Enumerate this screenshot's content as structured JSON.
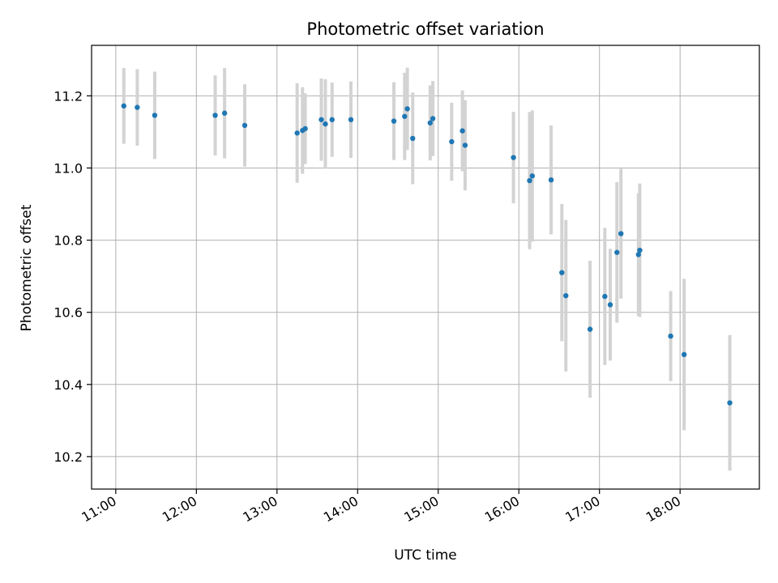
{
  "chart_data": {
    "type": "scatter",
    "title": "Photometric offset variation",
    "xlabel": "UTC time",
    "ylabel": "Photometric offset",
    "x_unit": "UTC hours",
    "xlim": [
      "10:42",
      "18:59"
    ],
    "ylim": [
      10.11,
      11.34
    ],
    "x_ticks": [
      {
        "value": "11:00",
        "label": "11:00"
      },
      {
        "value": "12:00",
        "label": "12:00"
      },
      {
        "value": "13:00",
        "label": "13:00"
      },
      {
        "value": "14:00",
        "label": "14:00"
      },
      {
        "value": "15:00",
        "label": "15:00"
      },
      {
        "value": "16:00",
        "label": "16:00"
      },
      {
        "value": "17:00",
        "label": "17:00"
      },
      {
        "value": "18:00",
        "label": "18:00"
      }
    ],
    "y_ticks": [
      {
        "value": 10.2,
        "label": "10.2"
      },
      {
        "value": 10.4,
        "label": "10.4"
      },
      {
        "value": 10.6,
        "label": "10.6"
      },
      {
        "value": 10.8,
        "label": "10.8"
      },
      {
        "value": 11.0,
        "label": "11.0"
      },
      {
        "value": 11.2,
        "label": "11.2"
      }
    ],
    "grid": true,
    "marker_color": "#1f77b4",
    "errorbar_color": "#d3d3d3",
    "points": [
      {
        "x": "11:06",
        "y": 11.172,
        "err": 0.105
      },
      {
        "x": "11:16",
        "y": 11.168,
        "err": 0.106
      },
      {
        "x": "11:29",
        "y": 11.146,
        "err": 0.121
      },
      {
        "x": "12:14",
        "y": 11.146,
        "err": 0.111
      },
      {
        "x": "12:21",
        "y": 11.152,
        "err": 0.125
      },
      {
        "x": "12:36",
        "y": 11.118,
        "err": 0.114
      },
      {
        "x": "13:15",
        "y": 11.097,
        "err": 0.138
      },
      {
        "x": "13:19",
        "y": 11.104,
        "err": 0.12
      },
      {
        "x": "13:21",
        "y": 11.109,
        "err": 0.098
      },
      {
        "x": "13:33",
        "y": 11.134,
        "err": 0.114
      },
      {
        "x": "13:36",
        "y": 11.122,
        "err": 0.124
      },
      {
        "x": "13:41",
        "y": 11.134,
        "err": 0.103
      },
      {
        "x": "13:55",
        "y": 11.134,
        "err": 0.106
      },
      {
        "x": "14:27",
        "y": 11.13,
        "err": 0.108
      },
      {
        "x": "14:35",
        "y": 11.143,
        "err": 0.121
      },
      {
        "x": "14:37",
        "y": 11.164,
        "err": 0.114
      },
      {
        "x": "14:41",
        "y": 11.082,
        "err": 0.127
      },
      {
        "x": "14:54",
        "y": 11.125,
        "err": 0.104
      },
      {
        "x": "14:56",
        "y": 11.137,
        "err": 0.104
      },
      {
        "x": "15:10",
        "y": 11.073,
        "err": 0.108
      },
      {
        "x": "15:18",
        "y": 11.103,
        "err": 0.112
      },
      {
        "x": "15:20",
        "y": 11.063,
        "err": 0.125
      },
      {
        "x": "15:56",
        "y": 11.029,
        "err": 0.127
      },
      {
        "x": "16:08",
        "y": 10.965,
        "err": 0.19
      },
      {
        "x": "16:10",
        "y": 10.978,
        "err": 0.182
      },
      {
        "x": "16:24",
        "y": 10.967,
        "err": 0.151
      },
      {
        "x": "16:32",
        "y": 10.71,
        "err": 0.19
      },
      {
        "x": "16:35",
        "y": 10.646,
        "err": 0.21
      },
      {
        "x": "16:53",
        "y": 10.553,
        "err": 0.19
      },
      {
        "x": "17:04",
        "y": 10.644,
        "err": 0.19
      },
      {
        "x": "17:08",
        "y": 10.621,
        "err": 0.155
      },
      {
        "x": "17:13",
        "y": 10.766,
        "err": 0.195
      },
      {
        "x": "17:16",
        "y": 10.818,
        "err": 0.18
      },
      {
        "x": "17:29",
        "y": 10.76,
        "err": 0.17
      },
      {
        "x": "17:30",
        "y": 10.772,
        "err": 0.185
      },
      {
        "x": "17:53",
        "y": 10.534,
        "err": 0.125
      },
      {
        "x": "18:03",
        "y": 10.483,
        "err": 0.21
      },
      {
        "x": "18:37",
        "y": 10.349,
        "err": 0.188
      }
    ]
  }
}
